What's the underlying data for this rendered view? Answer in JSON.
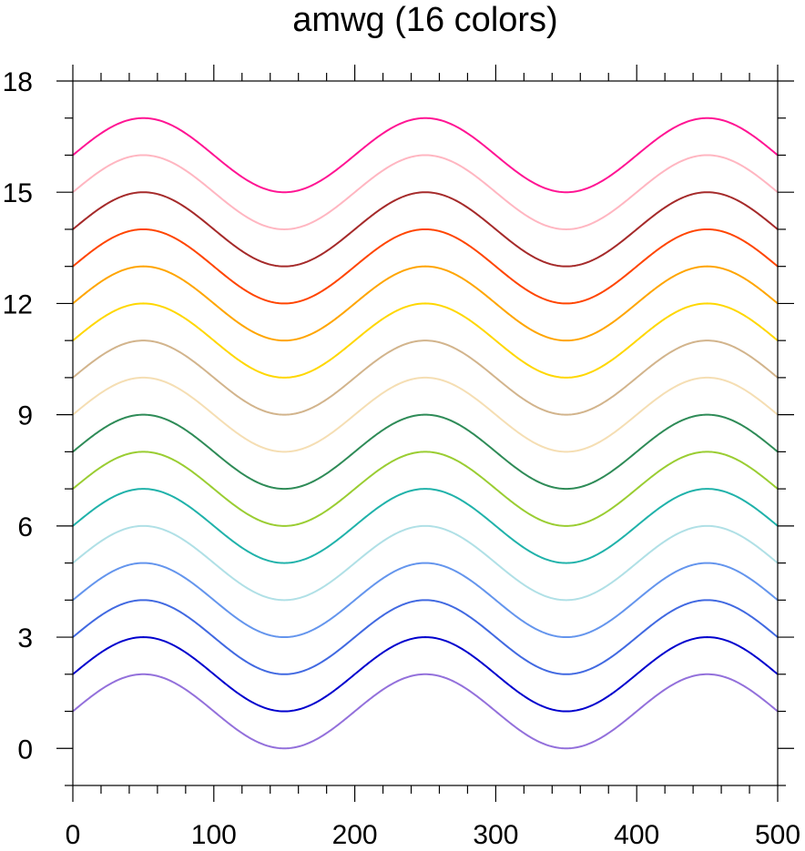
{
  "chart_data": {
    "type": "line",
    "title": "amwg (16 colors)",
    "xlabel": "",
    "ylabel": "",
    "xlim": [
      0,
      500
    ],
    "ylim": [
      -1,
      18
    ],
    "x_major_ticks": [
      0,
      100,
      200,
      300,
      400,
      500
    ],
    "x_tick_labels": [
      "0",
      "100",
      "200",
      "300",
      "400",
      "500"
    ],
    "x_minor_step": 20,
    "y_major_ticks": [
      0,
      3,
      6,
      9,
      12,
      15,
      18
    ],
    "y_tick_labels": [
      "0",
      "3",
      "6",
      "9",
      "12",
      "15",
      "18"
    ],
    "y_minor_step": 1,
    "grid": false,
    "curve": {
      "function": "offset + sin(2*pi*x/200)",
      "x_start": 0,
      "x_end": 500,
      "amplitude": 1,
      "period": 200
    },
    "series": [
      {
        "offset": 1,
        "color": "#9370db"
      },
      {
        "offset": 2,
        "color": "#0000cd"
      },
      {
        "offset": 3,
        "color": "#4169e1"
      },
      {
        "offset": 4,
        "color": "#6495ed"
      },
      {
        "offset": 5,
        "color": "#b0e0e6"
      },
      {
        "offset": 6,
        "color": "#20b2aa"
      },
      {
        "offset": 7,
        "color": "#9acd32"
      },
      {
        "offset": 8,
        "color": "#2e8b57"
      },
      {
        "offset": 9,
        "color": "#f5deb3"
      },
      {
        "offset": 10,
        "color": "#d2b48c"
      },
      {
        "offset": 11,
        "color": "#ffd700"
      },
      {
        "offset": 12,
        "color": "#ffa500"
      },
      {
        "offset": 13,
        "color": "#ff4500"
      },
      {
        "offset": 14,
        "color": "#a52a2a"
      },
      {
        "offset": 15,
        "color": "#ffb6c1"
      },
      {
        "offset": 16,
        "color": "#ff1493"
      }
    ]
  }
}
